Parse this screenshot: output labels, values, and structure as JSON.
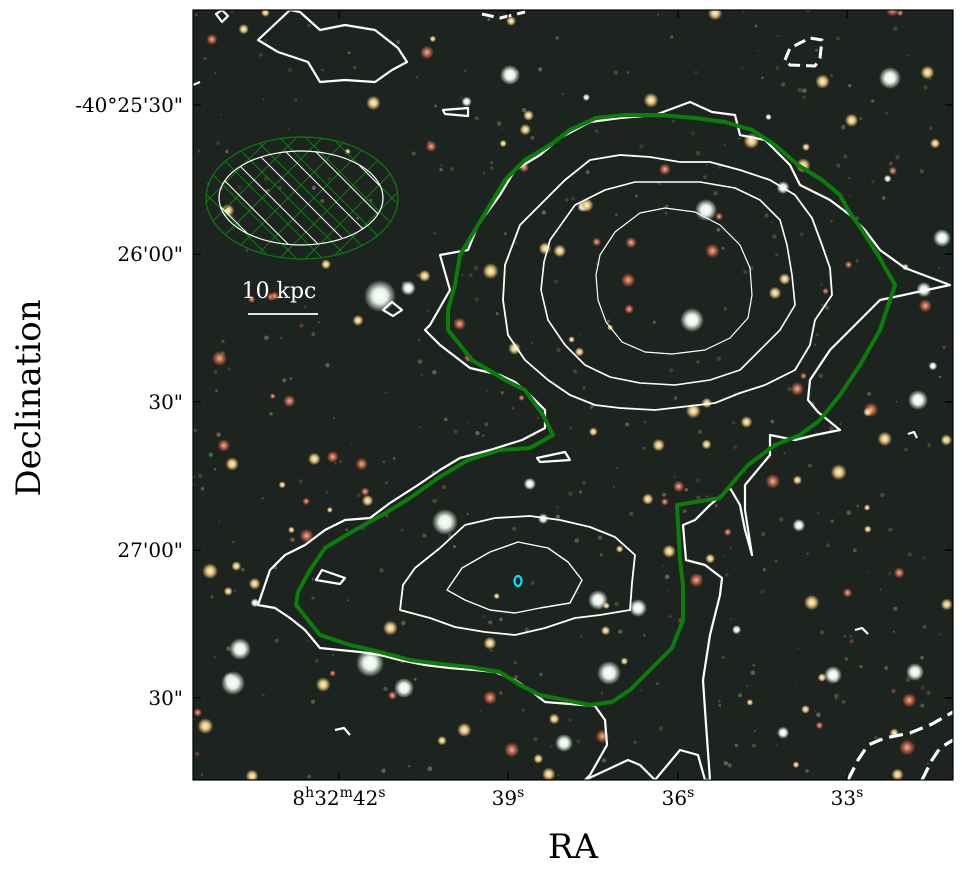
{
  "chart_data": {
    "type": "image",
    "xlabel": "RA",
    "ylabel": "Declination",
    "x_ticks": [
      {
        "main": "8",
        "sup1": "h",
        "mid": "32",
        "sup2": "m",
        "end": "42",
        "sup3": "s"
      },
      {
        "main": "39",
        "sup": "s"
      },
      {
        "main": "36",
        "sup": "s"
      },
      {
        "main": "33",
        "sup": "s"
      }
    ],
    "y_ticks": [
      "-40°25'30\"",
      "26'00\"",
      "30\"",
      "27'00\"",
      "30\""
    ],
    "scale_bar": {
      "label": "10 kpc"
    },
    "colors": {
      "background": "#1d241f",
      "contour_white": "#ffffff",
      "contour_green": "#0a7d0a",
      "marker_cyan": "#00e5ff"
    }
  }
}
